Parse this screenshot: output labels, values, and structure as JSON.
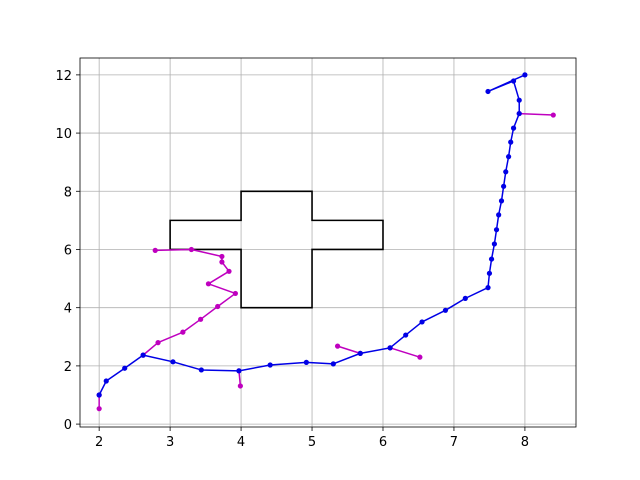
{
  "chart_data": {
    "type": "line",
    "title": "",
    "xlabel": "",
    "ylabel": "",
    "xlim": [
      1.73,
      8.72
    ],
    "ylim": [
      -0.1,
      12.58
    ],
    "grid": true,
    "x_ticks": [
      2,
      3,
      4,
      5,
      6,
      7,
      8
    ],
    "y_ticks": [
      0,
      2,
      4,
      6,
      8,
      10,
      12
    ],
    "obstacle": {
      "color": "#000000",
      "outline": [
        [
          3,
          6
        ],
        [
          3,
          7
        ],
        [
          4,
          7
        ],
        [
          4,
          8
        ],
        [
          5,
          8
        ],
        [
          5,
          7
        ],
        [
          6,
          7
        ],
        [
          6,
          6
        ],
        [
          5,
          6
        ],
        [
          5,
          4
        ],
        [
          4,
          4
        ],
        [
          4,
          6
        ],
        [
          3,
          6
        ]
      ]
    },
    "series": [
      {
        "role": "branches",
        "color": "#bf00bf",
        "segments": [
          [
            [
              2.0,
              1.0
            ],
            [
              2.0,
              0.53
            ]
          ],
          [
            [
              2.62,
              2.37
            ],
            [
              2.83,
              2.8
            ],
            [
              3.18,
              3.16
            ],
            [
              3.43,
              3.6
            ],
            [
              3.67,
              4.04
            ],
            [
              3.92,
              4.49
            ],
            [
              3.54,
              4.82
            ],
            [
              3.83,
              5.25
            ],
            [
              3.73,
              5.57
            ],
            [
              3.73,
              5.76
            ],
            [
              3.3,
              6.0
            ],
            [
              2.79,
              5.97
            ]
          ],
          [
            [
              3.97,
              1.83
            ],
            [
              3.99,
              1.31
            ]
          ],
          [
            [
              5.68,
              2.43
            ],
            [
              5.36,
              2.68
            ]
          ],
          [
            [
              6.1,
              2.62
            ],
            [
              6.52,
              2.3
            ]
          ],
          [
            [
              7.92,
              10.67
            ],
            [
              8.4,
              10.62
            ]
          ]
        ]
      },
      {
        "role": "path",
        "color": "#0000e6",
        "points": [
          [
            2.0,
            1.0
          ],
          [
            2.1,
            1.48
          ],
          [
            2.36,
            1.92
          ],
          [
            2.62,
            2.37
          ],
          [
            3.04,
            2.14
          ],
          [
            3.44,
            1.86
          ],
          [
            3.97,
            1.83
          ],
          [
            4.41,
            2.03
          ],
          [
            4.92,
            2.12
          ],
          [
            5.3,
            2.07
          ],
          [
            5.68,
            2.43
          ],
          [
            6.1,
            2.62
          ],
          [
            6.32,
            3.06
          ],
          [
            6.55,
            3.51
          ],
          [
            6.88,
            3.91
          ],
          [
            7.16,
            4.32
          ],
          [
            7.48,
            4.69
          ],
          [
            7.5,
            5.18
          ],
          [
            7.53,
            5.67
          ],
          [
            7.57,
            6.19
          ],
          [
            7.6,
            6.68
          ],
          [
            7.63,
            7.19
          ],
          [
            7.67,
            7.67
          ],
          [
            7.7,
            8.17
          ],
          [
            7.73,
            8.67
          ],
          [
            7.77,
            9.19
          ],
          [
            7.8,
            9.69
          ],
          [
            7.84,
            10.17
          ],
          [
            7.92,
            10.67
          ],
          [
            7.92,
            11.13
          ],
          [
            7.84,
            11.79
          ],
          [
            7.48,
            11.43
          ],
          [
            8.0,
            12.0
          ]
        ]
      }
    ]
  }
}
